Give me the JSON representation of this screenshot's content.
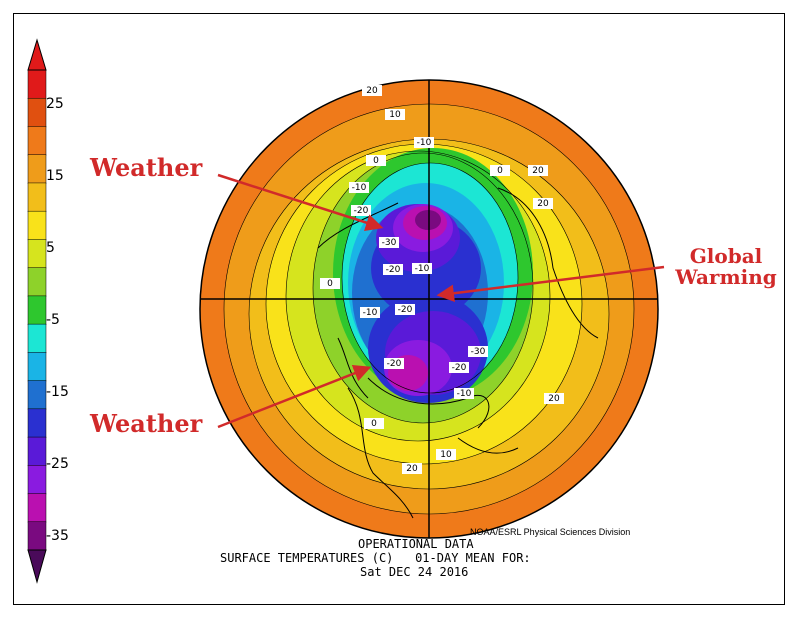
{
  "colorbar": {
    "colors": [
      "#7a0a80",
      "#ba10b0",
      "#8a1be0",
      "#5a1ad8",
      "#2a30d0",
      "#1f70d0",
      "#1ab4e6",
      "#1ce6d4",
      "#2ec72e",
      "#8ed22a",
      "#d6e41e",
      "#f9e21a",
      "#f2be1a",
      "#ef9c1a",
      "#ef7a1a",
      "#e05010",
      "#e01a1a"
    ],
    "labels": [
      "25",
      "15",
      "5",
      "-5",
      "-15",
      "-25",
      "-35"
    ]
  },
  "map": {
    "contour_labels": [
      "20",
      "10",
      "0",
      "-10",
      "0",
      "20",
      "-10",
      "20",
      "-20",
      "-30",
      "-20",
      "-10",
      "0",
      "-10",
      "-20",
      "-30",
      "-20",
      "-20",
      "-10",
      "20",
      "0",
      "10",
      "20"
    ]
  },
  "annotations": {
    "weather_top": "Weather",
    "weather_bottom": "Weather",
    "global_warming_line1": "Global",
    "global_warming_line2": "Warming",
    "arrow_color": "#d12a2a"
  },
  "footer": {
    "credit": "NOAA/ESRL Physical Sciences Division",
    "line1": "OPERATIONAL DATA",
    "line2": "SURFACE TEMPERATURES (C)   01-DAY MEAN FOR:",
    "line3": "Sat DEC 24 2016"
  }
}
